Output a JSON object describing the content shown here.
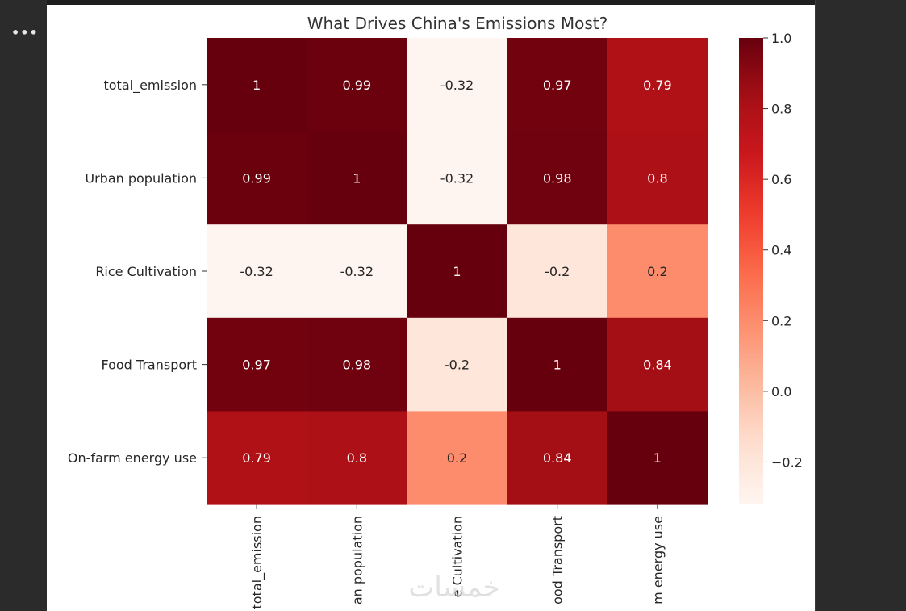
{
  "ui": {
    "more_label": "•••",
    "watermark_text": "خمسات"
  },
  "chart_data": {
    "type": "heatmap",
    "title": "What Drives China's Emissions Most?",
    "rows": [
      "total_emission",
      "Urban population",
      "Rice Cultivation",
      "Food Transport",
      "On-farm energy use"
    ],
    "columns": [
      "total_emission",
      "Urban population",
      "Rice Cultivation",
      "Food Transport",
      "On-farm energy use"
    ],
    "column_labels_shown": [
      "total_emission",
      "an population",
      "e Cultivation",
      "ood Transport",
      "m energy use"
    ],
    "values": [
      [
        1,
        0.99,
        -0.32,
        0.97,
        0.79
      ],
      [
        0.99,
        1,
        -0.32,
        0.98,
        0.8
      ],
      [
        -0.32,
        -0.32,
        1,
        -0.2,
        0.2
      ],
      [
        0.97,
        0.98,
        -0.2,
        1,
        0.84
      ],
      [
        0.79,
        0.8,
        0.2,
        0.84,
        1
      ]
    ],
    "annotations": [
      [
        "1",
        "0.99",
        "-0.32",
        "0.97",
        "0.79"
      ],
      [
        "0.99",
        "1",
        "-0.32",
        "0.98",
        "0.8"
      ],
      [
        "-0.32",
        "-0.32",
        "1",
        "-0.2",
        "0.2"
      ],
      [
        "0.97",
        "0.98",
        "-0.2",
        "1",
        "0.84"
      ],
      [
        "0.79",
        "0.8",
        "0.2",
        "0.84",
        "1"
      ]
    ],
    "colormap": "Reds",
    "vmin": -0.32,
    "vmax": 1.0,
    "colorbar_ticks": [
      1.0,
      0.8,
      0.6,
      0.4,
      0.2,
      0.0,
      -0.2
    ],
    "colorbar_tick_labels": [
      "1.0",
      "0.8",
      "0.6",
      "0.4",
      "0.2",
      "0.0",
      "−0.2"
    ]
  }
}
